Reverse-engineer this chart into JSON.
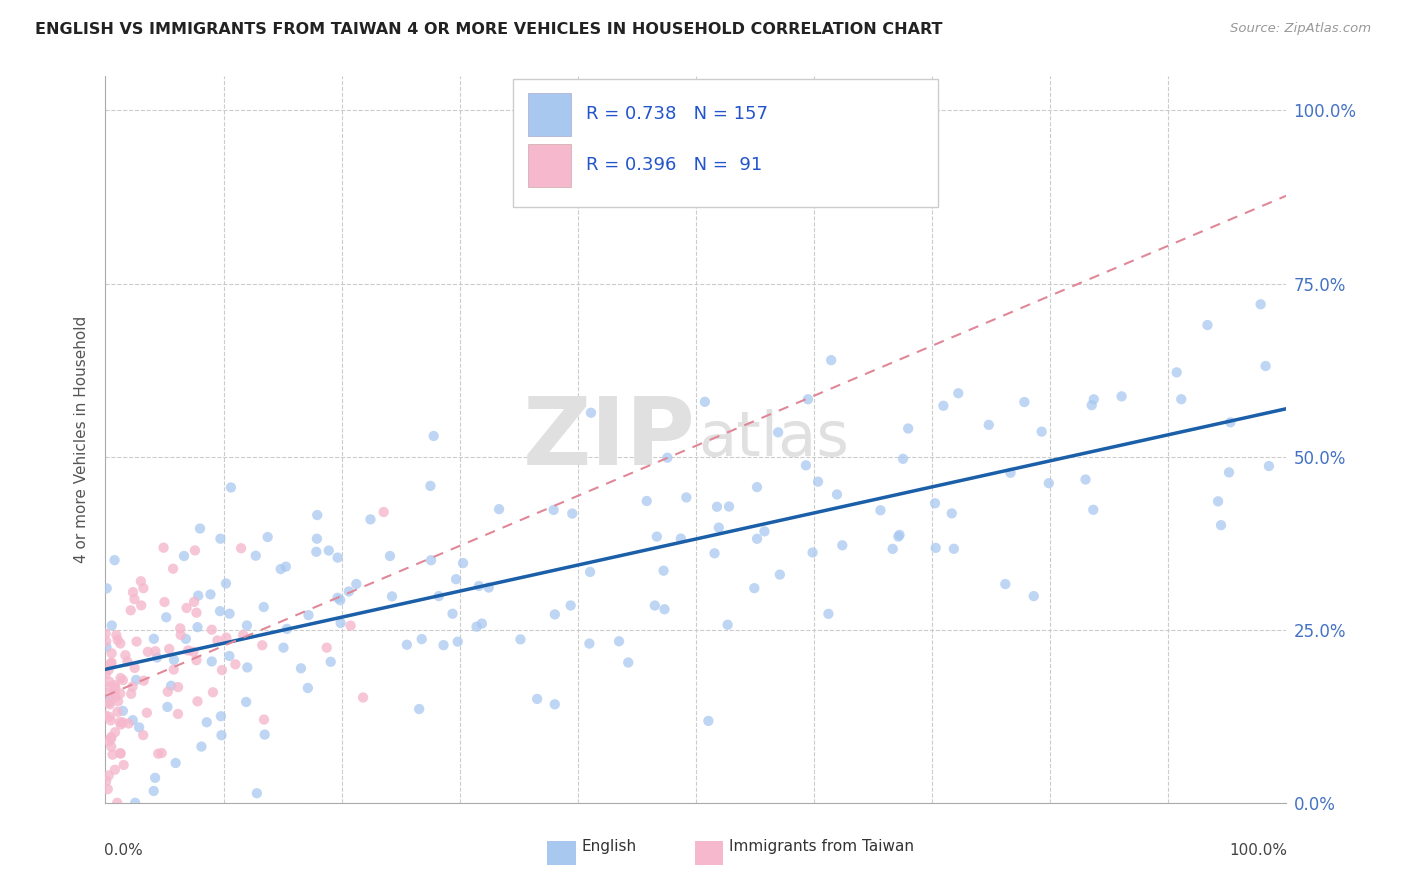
{
  "title": "ENGLISH VS IMMIGRANTS FROM TAIWAN 4 OR MORE VEHICLES IN HOUSEHOLD CORRELATION CHART",
  "source": "Source: ZipAtlas.com",
  "ylabel": "4 or more Vehicles in Household",
  "ytick_labels": [
    "0.0%",
    "25.0%",
    "50.0%",
    "75.0%",
    "100.0%"
  ],
  "ytick_values": [
    0.0,
    0.25,
    0.5,
    0.75,
    1.0
  ],
  "legend_label1": "English",
  "legend_label2": "Immigrants from Taiwan",
  "r1": 0.738,
  "n1": 157,
  "r2": 0.396,
  "n2": 91,
  "color_english": "#a8c8f0",
  "color_taiwan": "#f5b8cc",
  "color_line_english": "#1a5fa8",
  "color_line_taiwan": "#e08898",
  "background_color": "#ffffff"
}
